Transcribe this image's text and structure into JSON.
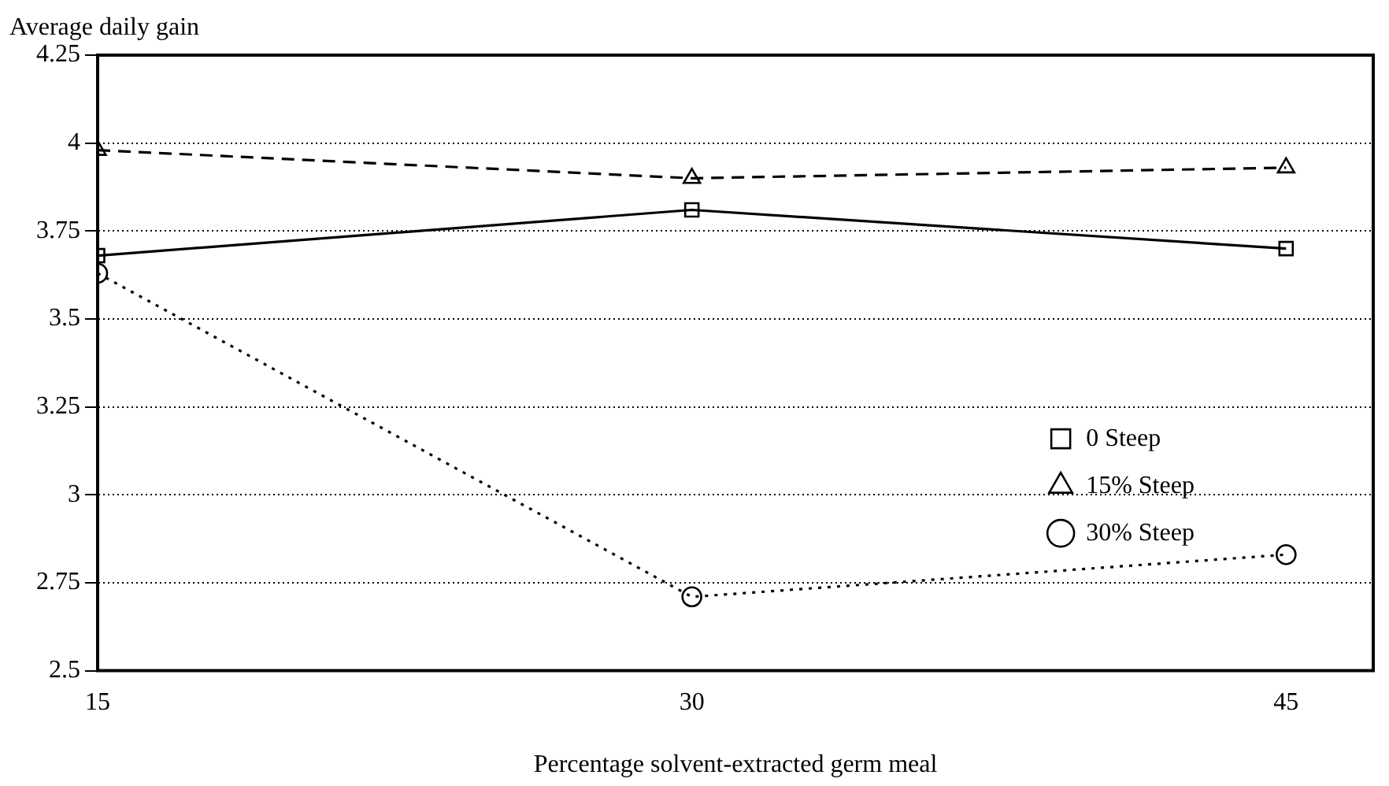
{
  "chart_data": {
    "type": "line",
    "ylabel": "Average daily gain",
    "xlabel": "Percentage solvent-extracted germ meal",
    "x": [
      15,
      30,
      45
    ],
    "xlim": [
      15,
      47.2
    ],
    "xticks": [
      15,
      30,
      45
    ],
    "ylim": [
      2.5,
      4.25
    ],
    "yticks": [
      2.5,
      2.75,
      3,
      3.25,
      3.5,
      3.75,
      4,
      4.25
    ],
    "grid": "y",
    "legend": "right",
    "series": [
      {
        "name": "0 Steep",
        "color": "#000000",
        "values": [
          3.68,
          3.81,
          3.7
        ],
        "marker": "square",
        "line_style": "solid"
      },
      {
        "name": "15% Steep",
        "color": "#000000",
        "values": [
          3.98,
          3.9,
          3.93
        ],
        "marker": "triangle",
        "line_style": "dashed"
      },
      {
        "name": "30% Steep",
        "color": "#000000",
        "values": [
          3.63,
          2.71,
          2.83
        ],
        "marker": "circle",
        "line_style": "dotted"
      }
    ]
  }
}
